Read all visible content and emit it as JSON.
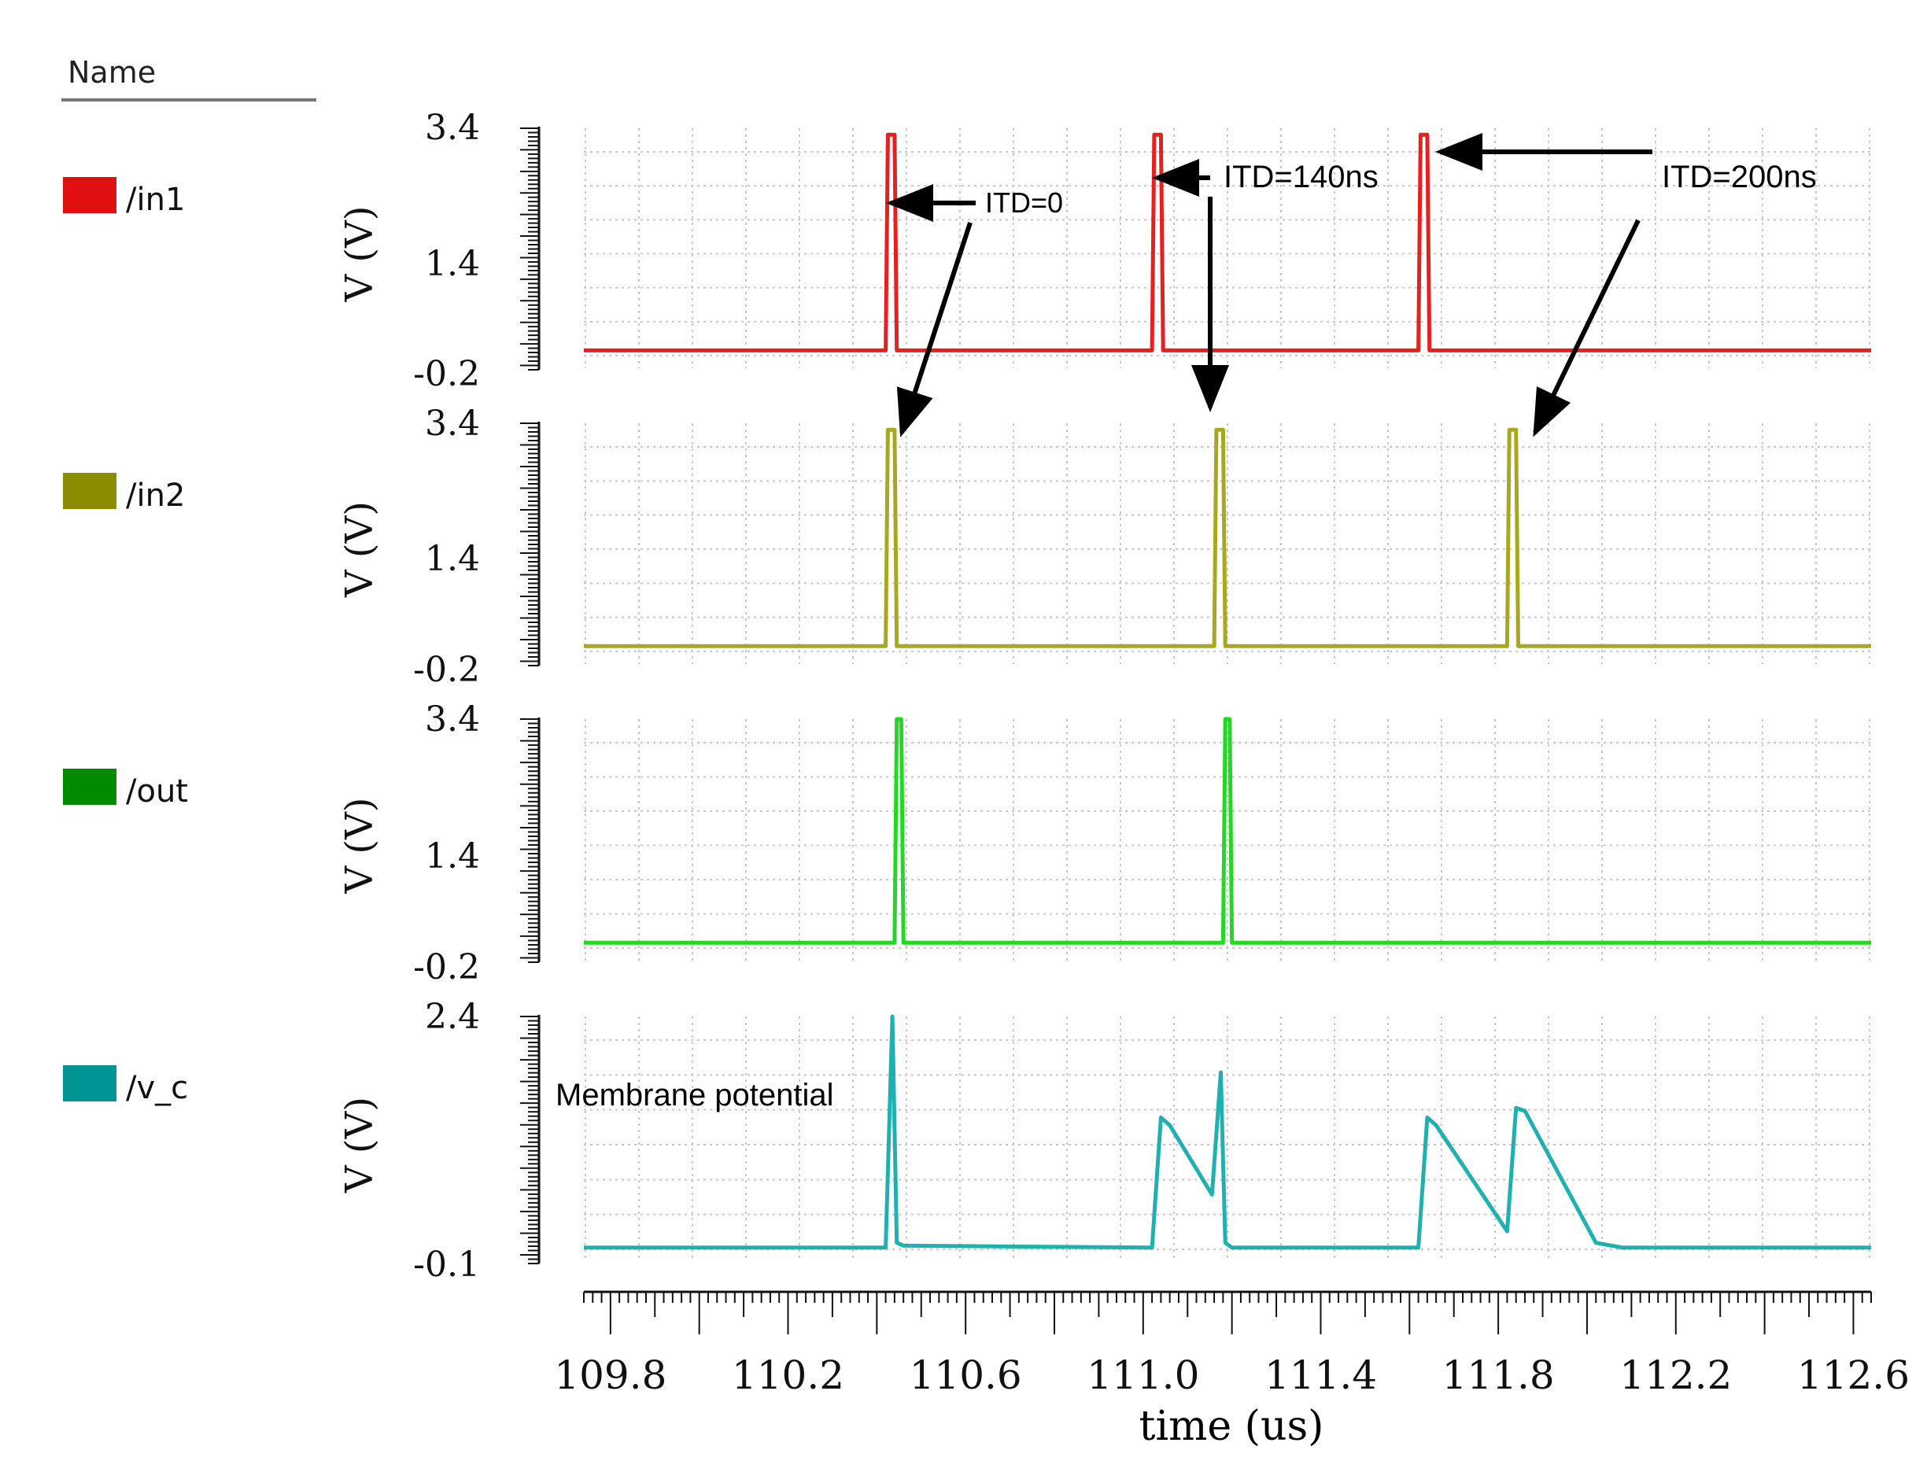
{
  "legend": {
    "header": "Name",
    "entries": [
      {
        "name": "/in1",
        "color": "#e01010"
      },
      {
        "name": "/in2",
        "color": "#8c8c00"
      },
      {
        "name": "/out",
        "color": "#008a00"
      },
      {
        "name": "/v_c",
        "color": "#009494"
      }
    ]
  },
  "annotations": {
    "itd0": "ITD=0",
    "itd140": "ITD=140ns",
    "itd200": "ITD=200ns",
    "membrane": "Membrane potential"
  },
  "chart_data": {
    "type": "line",
    "xlabel": "time (us)",
    "xlim": [
      109.74,
      112.64
    ],
    "xticks": [
      "109.8",
      "110.2",
      "110.6",
      "111.0",
      "111.4",
      "111.8",
      "112.2",
      "112.6"
    ],
    "grid": true,
    "panels": [
      {
        "name": "/in1",
        "color": "#e01010",
        "trace_color": "#e52020",
        "ylabel": "V (V)",
        "yticks": [
          "3.4",
          "1.4",
          "-0.2"
        ],
        "ylim": [
          -0.2,
          3.4
        ],
        "x": [
          109.74,
          110.42,
          110.425,
          110.44,
          110.445,
          111.02,
          111.025,
          111.04,
          111.045,
          111.62,
          111.625,
          111.64,
          111.645,
          112.64
        ],
        "y": [
          0,
          0,
          3.3,
          3.3,
          0,
          0,
          3.3,
          3.3,
          0,
          0,
          3.3,
          3.3,
          0,
          0
        ]
      },
      {
        "name": "/in2",
        "color": "#8c8c00",
        "trace_color": "#a8a820",
        "ylabel": "V (V)",
        "yticks": [
          "3.4",
          "1.4",
          "-0.2"
        ],
        "ylim": [
          -0.2,
          3.4
        ],
        "x": [
          109.74,
          110.42,
          110.425,
          110.44,
          110.445,
          111.16,
          111.165,
          111.18,
          111.185,
          111.82,
          111.825,
          111.84,
          111.845,
          112.64
        ],
        "y": [
          0,
          0,
          3.3,
          3.3,
          0,
          0,
          3.3,
          3.3,
          0,
          0,
          3.3,
          3.3,
          0,
          0
        ]
      },
      {
        "name": "/out",
        "color": "#008a00",
        "trace_color": "#22d822",
        "ylabel": "V (V)",
        "yticks": [
          "3.4",
          "1.4",
          "-0.2"
        ],
        "ylim": [
          -0.2,
          3.4
        ],
        "x": [
          109.74,
          110.44,
          110.445,
          110.455,
          110.46,
          111.18,
          111.185,
          111.195,
          111.2,
          112.64
        ],
        "y": [
          0,
          0,
          3.4,
          3.4,
          0,
          0,
          3.4,
          3.4,
          0,
          0
        ]
      },
      {
        "name": "/v_c",
        "color": "#009494",
        "trace_color": "#20b0b0",
        "ylabel": "V (V)",
        "yticks": [
          "2.4",
          "-0.1"
        ],
        "ylim": [
          -0.1,
          2.4
        ],
        "x": [
          109.74,
          110.42,
          110.435,
          110.445,
          110.46,
          111.02,
          111.04,
          111.06,
          111.155,
          111.175,
          111.18,
          111.185,
          111.2,
          111.62,
          111.64,
          111.66,
          111.82,
          111.84,
          111.86,
          112.02,
          112.08,
          112.64
        ],
        "y": [
          0,
          0,
          2.4,
          0.05,
          0.02,
          0,
          1.35,
          1.27,
          0.55,
          1.82,
          0.9,
          0.05,
          0,
          0,
          1.35,
          1.27,
          0.17,
          1.45,
          1.42,
          0.05,
          0,
          0
        ]
      }
    ]
  }
}
